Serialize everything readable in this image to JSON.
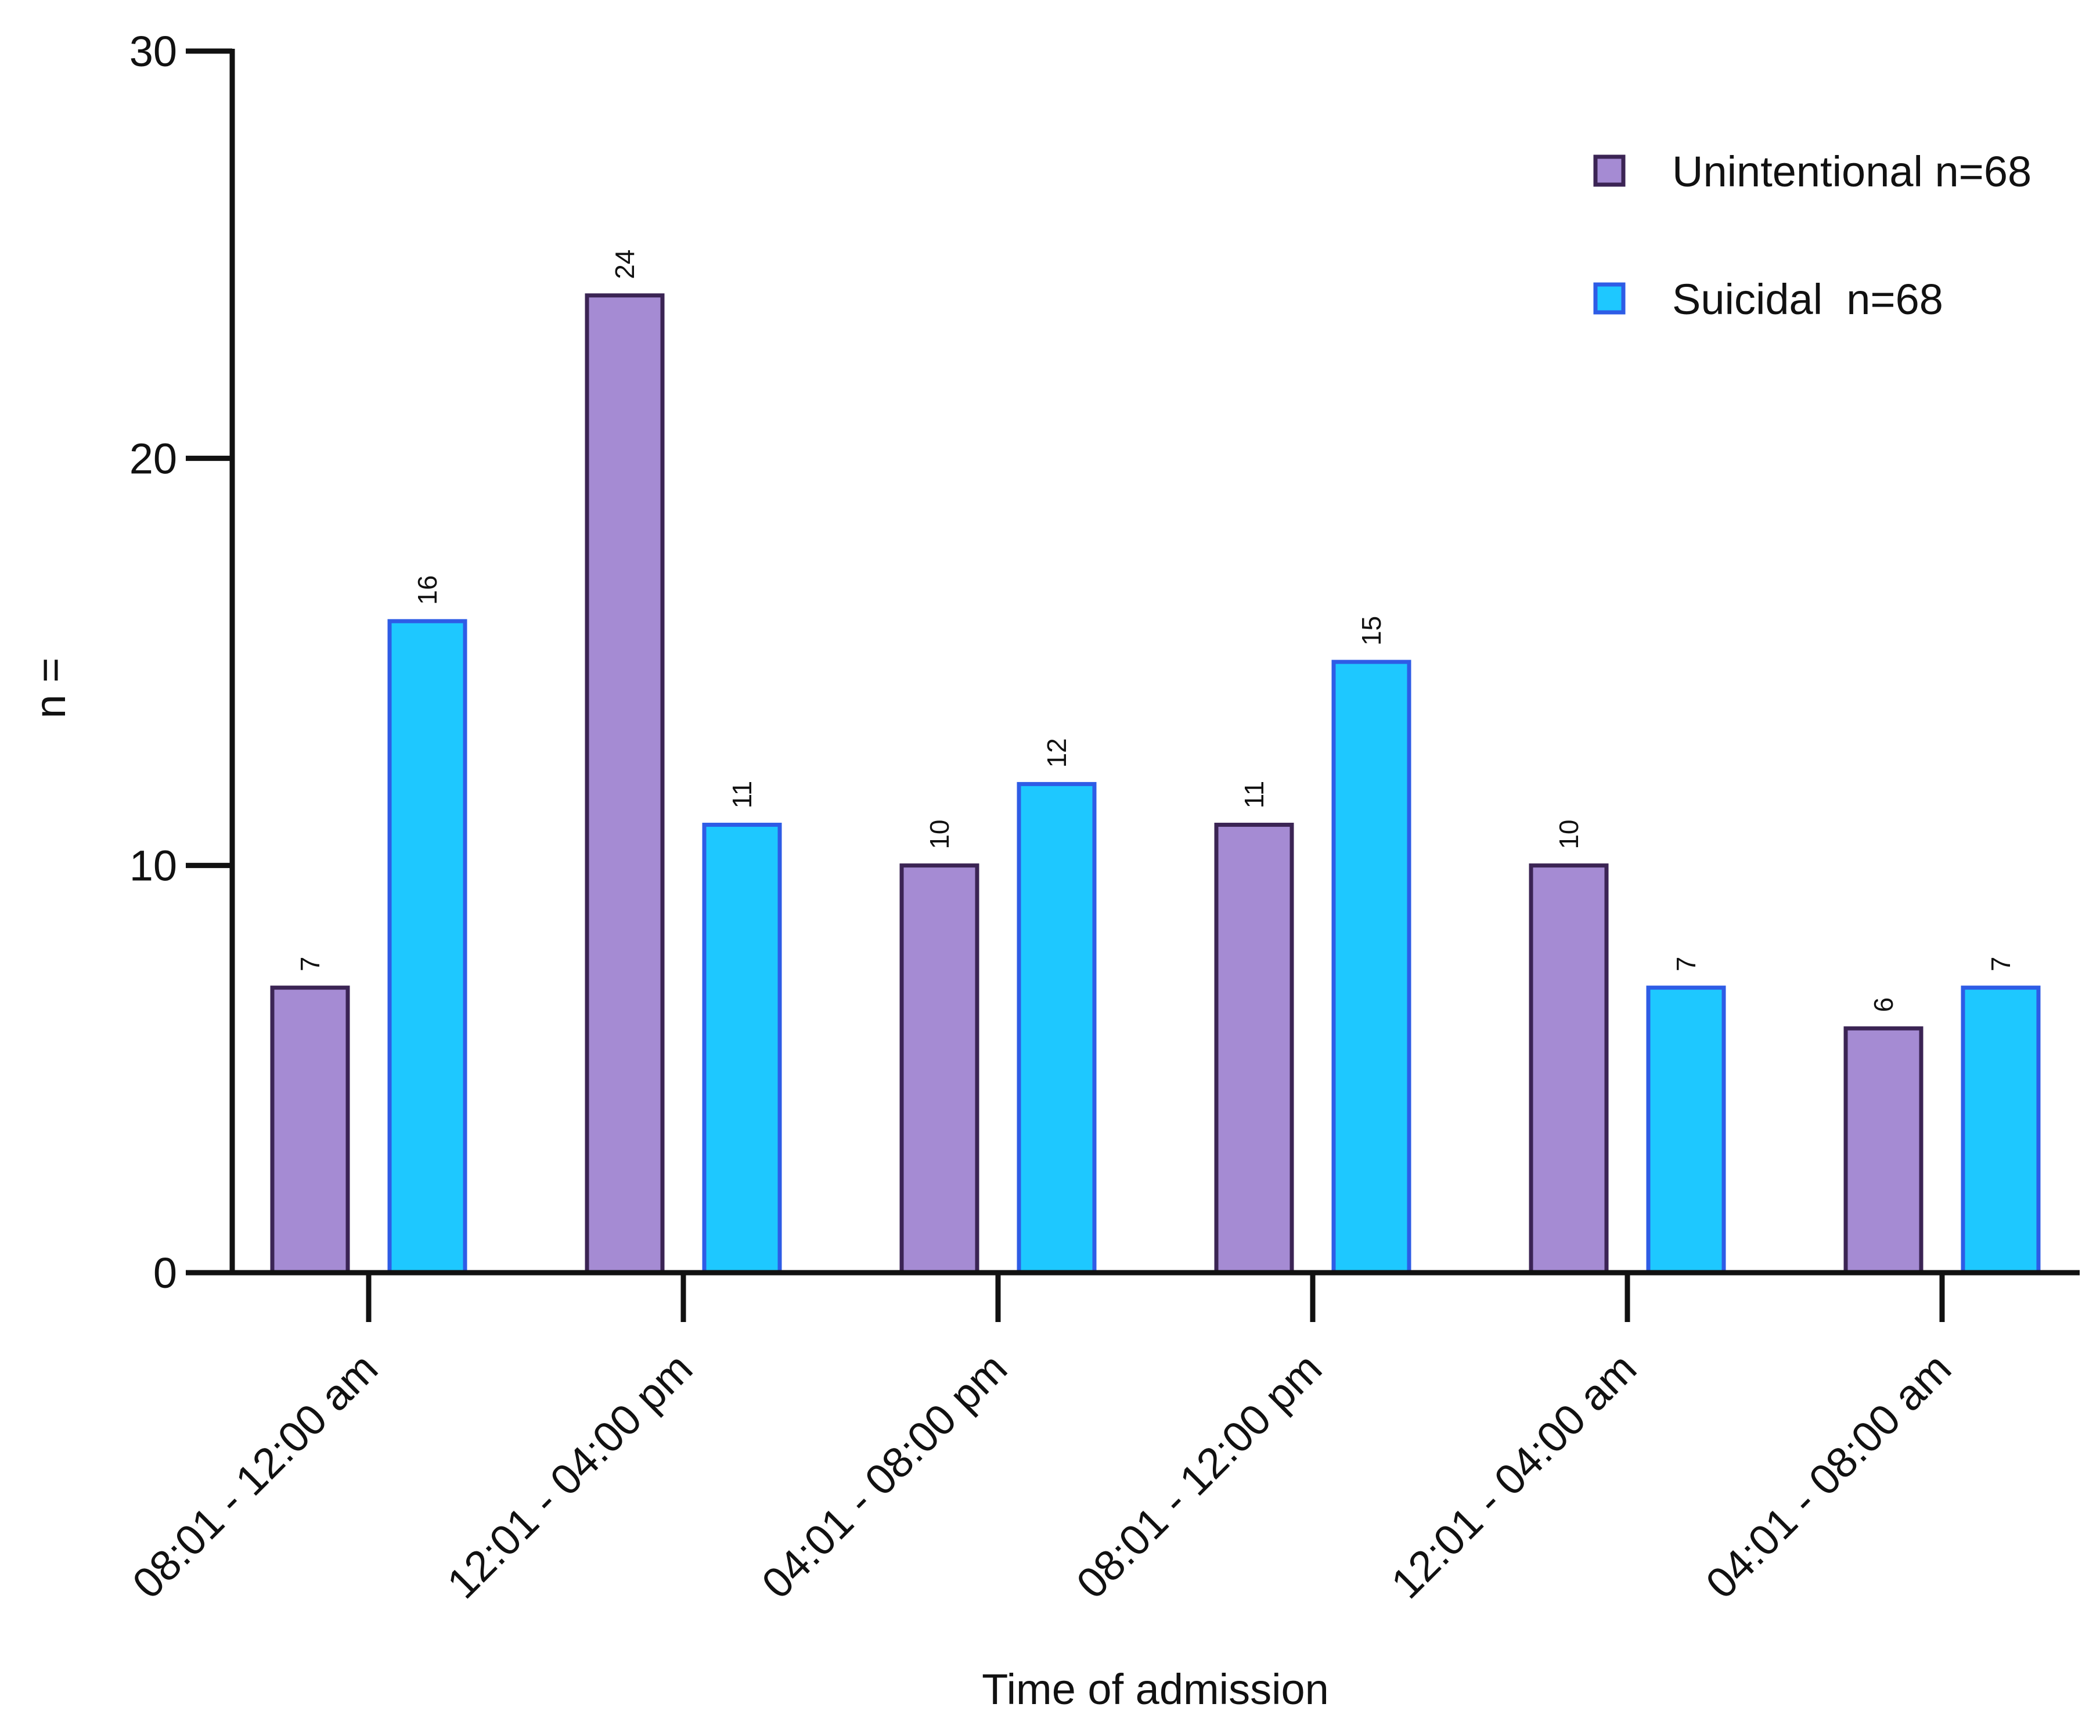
{
  "chart_data": {
    "type": "bar",
    "x_label": "Time of admission",
    "y_label": "n =",
    "categories": [
      "08:01 - 12:00 am",
      "12:01 - 04:00 pm",
      "04:01 - 08:00 pm",
      "08:01 - 12:00 pm",
      "12:01 - 04:00 am",
      "04:01 - 08:00 am"
    ],
    "series": [
      {
        "name": "Unintentional n=68",
        "color": "#a58bd3",
        "edge": "#3b2454",
        "values": [
          7,
          24,
          10,
          11,
          10,
          6
        ]
      },
      {
        "name": "Suicidal  n=68",
        "color": "#1ec8ff",
        "edge": "#2e5ce6",
        "values": [
          16,
          11,
          12,
          15,
          7,
          7
        ]
      }
    ],
    "ylim": [
      0,
      30
    ],
    "yticks": [
      0,
      10,
      20,
      30
    ],
    "grid": false,
    "legend": "upper right"
  }
}
